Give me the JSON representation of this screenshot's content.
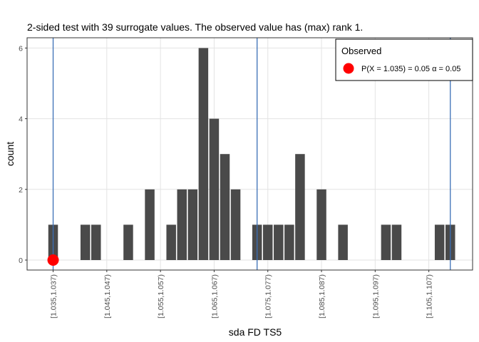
{
  "chart_data": {
    "type": "bar",
    "title": "2-sided test with 39 surrogate values. The observed value has (max) rank 1.",
    "xlabel": "sda FD TS5",
    "ylabel": "count",
    "ylim": [
      0,
      6
    ],
    "yticks": [
      0,
      2,
      4,
      6
    ],
    "grid": true,
    "x_tick_labels": [
      "[1.035,1.037)",
      "[1.045,1.047)",
      "[1.055,1.057)",
      "[1.065,1.067)",
      "[1.075,1.077)",
      "[1.085,1.087)",
      "[1.095,1.097)",
      "[1.105,1.107)"
    ],
    "x_tick_bins": [
      0,
      5,
      10,
      15,
      20,
      25,
      30,
      35
    ],
    "num_bins": 38,
    "bins": [
      {
        "bin": 0,
        "count": 1
      },
      {
        "bin": 3,
        "count": 1
      },
      {
        "bin": 4,
        "count": 1
      },
      {
        "bin": 7,
        "count": 1
      },
      {
        "bin": 9,
        "count": 2
      },
      {
        "bin": 11,
        "count": 1
      },
      {
        "bin": 12,
        "count": 2
      },
      {
        "bin": 13,
        "count": 2
      },
      {
        "bin": 14,
        "count": 6
      },
      {
        "bin": 15,
        "count": 4
      },
      {
        "bin": 16,
        "count": 3
      },
      {
        "bin": 17,
        "count": 2
      },
      {
        "bin": 19,
        "count": 1
      },
      {
        "bin": 20,
        "count": 1
      },
      {
        "bin": 21,
        "count": 1
      },
      {
        "bin": 22,
        "count": 1
      },
      {
        "bin": 23,
        "count": 3
      },
      {
        "bin": 25,
        "count": 2
      },
      {
        "bin": 27,
        "count": 1
      },
      {
        "bin": 31,
        "count": 1
      },
      {
        "bin": 32,
        "count": 1
      },
      {
        "bin": 36,
        "count": 1
      },
      {
        "bin": 37,
        "count": 1
      }
    ],
    "reference_lines_bin": [
      0,
      19,
      37
    ],
    "observed_point": {
      "bin": 0,
      "count": 0
    },
    "legend": {
      "title": "Observed",
      "label": "P(X = 1.035) = 0.05  α = 0.05",
      "placement": "top-right"
    },
    "colors": {
      "bar": "#4a4a4a",
      "vline": "#3b6fb6",
      "point": "#ff0000",
      "grid": "#e3e3e3",
      "panel_border": "#333333"
    }
  }
}
